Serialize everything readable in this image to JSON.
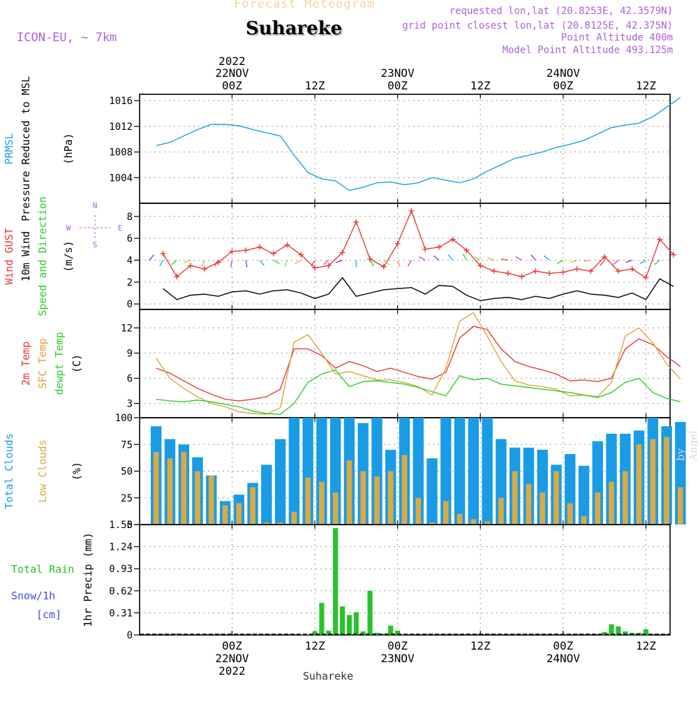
{
  "header": {
    "product_title": "Forecast Meteogram",
    "location": "Suhareke",
    "model": "ICON-EU, ~ 7km",
    "requested": "requested lon,lat (20.8253E, 42.3579N)",
    "grid_point": "grid point closest lon,lat (20.8125E, 42.375N)",
    "point_altitude": "Point Altitude 400m",
    "model_altitude": "Model Point Altitude 493.125m",
    "footer_location": "Suhareke",
    "watermark": "by Angel"
  },
  "time_axis": {
    "top_year": "2022",
    "top_dates": [
      "22NOV",
      "23NOV",
      "24NOV"
    ],
    "tick_labels": [
      "00Z",
      "12Z",
      "00Z",
      "12Z",
      "00Z",
      "12Z"
    ],
    "bottom_dates": [
      "22NOV",
      "23NOV",
      "24NOV"
    ],
    "bottom_year": "2022"
  },
  "chart_data": [
    {
      "type": "line",
      "panel": "pressure",
      "label_lines": [
        "PRMSL",
        "Pressure Reduced to MSL"
      ],
      "unit_label": "(hPa)",
      "ylim": [
        1000,
        1017
      ],
      "yticks": [
        1004,
        1008,
        1012,
        1016
      ],
      "grid": true,
      "x_hours": [
        -11,
        -9,
        -7,
        -5,
        -3,
        -1,
        1,
        3,
        5,
        7,
        9,
        11,
        13,
        15,
        17,
        19,
        21,
        23,
        25,
        27,
        29,
        31,
        33,
        35,
        37,
        39,
        41,
        43,
        45,
        47,
        49,
        51,
        53,
        55,
        57,
        59,
        61,
        63,
        65
      ],
      "series": [
        {
          "name": "PRMSL",
          "color": "#1da0e6",
          "values": [
            1009.0,
            1009.5,
            1010.5,
            1011.5,
            1012.3,
            1012.3,
            1012.1,
            1011.5,
            1011.0,
            1010.5,
            1007.5,
            1004.8,
            1003.8,
            1003.5,
            1002.0,
            1002.5,
            1003.2,
            1003.3,
            1002.9,
            1003.2,
            1004.0,
            1003.6,
            1003.2,
            1003.8,
            1005.0,
            1006.0,
            1007.0,
            1007.5,
            1008.0,
            1008.7,
            1009.2,
            1009.8,
            1010.8,
            1011.8,
            1012.2,
            1012.5,
            1013.5,
            1015.0,
            1016.5
          ]
        }
      ]
    },
    {
      "type": "line",
      "panel": "wind",
      "label_lines": [
        "Wind GUST",
        "10m Wind",
        "Speed and Direction"
      ],
      "unit_label": "(m/s)",
      "compass": [
        "N",
        "E",
        "S",
        "W"
      ],
      "ylim": [
        -0.5,
        9.2
      ],
      "yticks": [
        0,
        2,
        4,
        6,
        8
      ],
      "grid": true,
      "x_hours": [
        -10,
        -8,
        -6,
        -4,
        -2,
        0,
        2,
        4,
        6,
        8,
        10,
        12,
        14,
        16,
        18,
        20,
        22,
        24,
        26,
        28,
        30,
        32,
        34,
        36,
        38,
        40,
        42,
        44,
        46,
        48,
        50,
        52,
        54,
        56,
        58,
        60,
        62,
        64
      ],
      "series": [
        {
          "name": "Wind GUST",
          "color": "#e83b3b",
          "marker": "+",
          "values": [
            4.6,
            2.5,
            3.5,
            3.2,
            3.8,
            4.8,
            4.9,
            5.2,
            4.6,
            5.4,
            4.5,
            3.3,
            3.5,
            4.7,
            7.5,
            4.1,
            3.4,
            5.5,
            8.5,
            5.0,
            5.2,
            5.9,
            4.9,
            3.5,
            3.0,
            2.8,
            2.5,
            3.0,
            2.8,
            2.9,
            3.2,
            3.0,
            4.3,
            3.0,
            3.2,
            2.4,
            5.9,
            4.5
          ]
        },
        {
          "name": "10m Wind",
          "color": "#000000",
          "values": [
            1.4,
            0.4,
            0.8,
            0.9,
            0.7,
            1.1,
            1.2,
            0.9,
            1.2,
            1.3,
            1.0,
            0.5,
            0.9,
            2.4,
            0.7,
            1.0,
            1.3,
            1.4,
            1.5,
            0.9,
            1.7,
            1.6,
            0.8,
            0.3,
            0.5,
            0.6,
            0.4,
            0.7,
            0.5,
            0.9,
            1.2,
            0.9,
            0.8,
            0.6,
            1.0,
            0.4,
            2.3,
            1.6
          ]
        }
      ]
    },
    {
      "type": "line",
      "panel": "temperature",
      "label_lines": [
        "2m Temp",
        "SFC Temp",
        "dewpt Temp"
      ],
      "unit_label": "(C)",
      "ylim": [
        1.3,
        14.2
      ],
      "yticks": [
        3,
        6,
        9,
        12
      ],
      "grid": true,
      "x_hours": [
        -11,
        -9,
        -7,
        -5,
        -3,
        -1,
        1,
        3,
        5,
        7,
        9,
        11,
        13,
        15,
        17,
        19,
        21,
        23,
        25,
        27,
        29,
        31,
        33,
        35,
        37,
        39,
        41,
        43,
        45,
        47,
        49,
        51,
        53,
        55,
        57,
        59,
        61,
        63,
        65
      ],
      "series": [
        {
          "name": "2m Temp",
          "color": "#e83b3b",
          "values": [
            7.2,
            6.6,
            5.7,
            4.8,
            4.1,
            3.5,
            3.3,
            3.5,
            3.8,
            4.7,
            9.5,
            9.5,
            8.7,
            7.2,
            8.0,
            7.5,
            6.8,
            7.2,
            6.7,
            6.2,
            5.9,
            6.7,
            10.8,
            12.2,
            11.8,
            9.5,
            8.0,
            7.4,
            7.0,
            6.5,
            5.7,
            5.8,
            5.6,
            6.0,
            9.5,
            10.7,
            10.0,
            8.6,
            7.4
          ]
        },
        {
          "name": "SFC Temp",
          "color": "#e3a33a",
          "values": [
            8.4,
            6.0,
            4.8,
            3.8,
            3.0,
            2.6,
            2.0,
            1.8,
            1.7,
            2.5,
            10.3,
            11.2,
            9.0,
            6.5,
            6.8,
            6.3,
            5.8,
            5.8,
            5.5,
            5.0,
            4.0,
            7.2,
            12.8,
            13.8,
            11.0,
            8.0,
            5.7,
            5.2,
            5.0,
            4.7,
            3.9,
            4.0,
            3.8,
            5.5,
            11.0,
            12.0,
            10.2,
            7.7,
            5.9
          ]
        },
        {
          "name": "dewpt Temp",
          "color": "#2ecc2e",
          "values": [
            3.5,
            3.3,
            3.2,
            3.4,
            3.2,
            2.9,
            2.6,
            2.1,
            1.8,
            1.7,
            3.0,
            5.5,
            6.5,
            7.0,
            5.0,
            5.6,
            5.7,
            5.5,
            5.3,
            4.9,
            4.4,
            3.9,
            6.3,
            5.8,
            6.0,
            5.3,
            5.1,
            4.9,
            4.7,
            4.5,
            4.3,
            4.0,
            3.7,
            4.3,
            5.5,
            6.0,
            4.3,
            3.6,
            3.2
          ]
        }
      ]
    },
    {
      "type": "bar",
      "panel": "clouds",
      "label_lines": [
        "Total Clouds",
        "Low Clouds"
      ],
      "unit_label": "(%)",
      "ylim": [
        0,
        100
      ],
      "yticks": [
        0,
        25,
        50,
        75,
        100
      ],
      "grid": true,
      "x_hours": [
        -11,
        -9,
        -7,
        -5,
        -3,
        -1,
        1,
        3,
        5,
        7,
        9,
        11,
        13,
        15,
        17,
        19,
        21,
        23,
        25,
        27,
        29,
        31,
        33,
        35,
        37,
        39,
        41,
        43,
        45,
        47,
        49,
        51,
        53,
        55,
        57,
        59,
        61,
        63,
        65
      ],
      "series": [
        {
          "name": "Total Clouds",
          "color": "#1a9be6",
          "values": [
            92,
            80,
            75,
            63,
            46,
            22,
            28,
            39,
            56,
            80,
            100,
            100,
            100,
            100,
            100,
            95,
            100,
            70,
            100,
            100,
            62,
            100,
            100,
            100,
            100,
            80,
            72,
            72,
            70,
            56,
            66,
            55,
            78,
            85,
            85,
            88,
            100,
            92,
            96
          ]
        },
        {
          "name": "Low Clouds",
          "color": "#d9aa45",
          "values": [
            68,
            62,
            68,
            50,
            46,
            18,
            20,
            35,
            2,
            2,
            12,
            44,
            40,
            30,
            60,
            50,
            45,
            50,
            65,
            25,
            2,
            22,
            10,
            5,
            3,
            25,
            50,
            38,
            30,
            50,
            20,
            8,
            30,
            40,
            50,
            75,
            80,
            82,
            35
          ]
        }
      ]
    },
    {
      "type": "bar",
      "panel": "precipitation",
      "label_lines": [
        "Total  Rain",
        "Snow/1h",
        "[cm]"
      ],
      "unit_label": "1hr Precip (mm)",
      "ylim": [
        0,
        1.55
      ],
      "yticks": [
        0,
        0.31,
        0.62,
        0.93,
        1.24,
        1.55
      ],
      "grid": true,
      "x_hours": [
        -8,
        10,
        11,
        12,
        13,
        14,
        15,
        16,
        17,
        18,
        19,
        20,
        21,
        22,
        23,
        24,
        25,
        54,
        55,
        56,
        57,
        58,
        59,
        60
      ],
      "series": [
        {
          "name": "Total Rain",
          "color": "#27c22a",
          "values": [
            0.02,
            0.01,
            0.01,
            0.05,
            0.45,
            0.06,
            1.5,
            0.4,
            0.28,
            0.32,
            0.05,
            0.62,
            0.03,
            0.02,
            0.13,
            0.06,
            0.01,
            0.04,
            0.15,
            0.12,
            0.05,
            0.03,
            0.03,
            0.08
          ]
        },
        {
          "name": "Snow/1h",
          "color": "#4848e6",
          "values": []
        }
      ]
    }
  ],
  "colors": {
    "pressure": "#1da0e6",
    "gust": "#e83b3b",
    "wind": "#000000",
    "temp2m": "#e83b3b",
    "sfc": "#e3a33a",
    "dewpt": "#2ecc2e",
    "total_clouds": "#1a9be6",
    "low_clouds": "#d9aa45",
    "rain": "#27c22a",
    "snow": "#4848e6",
    "header_accent": "#b05fd8"
  }
}
